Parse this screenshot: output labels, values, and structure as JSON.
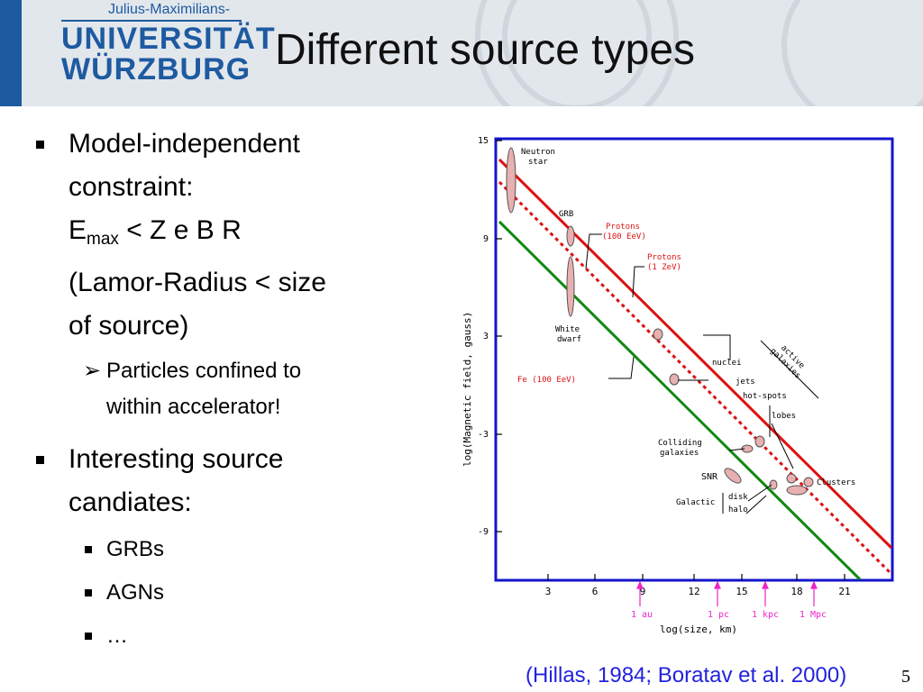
{
  "header": {
    "logo_subtitle": "Julius-Maximilians-",
    "logo_line1": "UNIVERSITÄT",
    "logo_line2": "WÜRZBURG",
    "title": "Different source types"
  },
  "bullets": {
    "b1_line1": "Model-independent",
    "b1_line2": "constraint:",
    "b1_emax_base": "E",
    "b1_emax_sub": "max",
    "b1_emax_rest": " < Z e B R",
    "b1_line4": "(Lamor-Radius < size",
    "b1_line5": "of source)",
    "b1_sub1_line1": "Particles confined to",
    "b1_sub1_line2": "within accelerator!",
    "b2_line1": "Interesting source",
    "b2_line2": "candiates:",
    "b2_sub1": "GRBs",
    "b2_sub2": "AGNs",
    "b2_sub3": "…"
  },
  "figure": {
    "ylabel": "log(Magnetic field, gauss)",
    "xlabel": "log(size, km)",
    "y_ticks": [
      "15",
      "9",
      "3",
      "-3",
      "-9"
    ],
    "x_ticks": [
      "3",
      "6",
      "9",
      "12",
      "15",
      "18",
      "21"
    ],
    "scale_markers": [
      "1 au",
      "1 pc",
      "1 kpc",
      "1 Mpc"
    ],
    "labels": {
      "neutron_star_1": "Neutron",
      "neutron_star_2": "star",
      "grb": "GRB",
      "protons_100_1": "Protons",
      "protons_100_2": "(100 EeV)",
      "protons_1z_1": "Protons",
      "protons_1z_2": "(1 ZeV)",
      "white_dwarf_1": "White",
      "white_dwarf_2": "dwarf",
      "nuclei": "nuclei",
      "active_galaxies_1": "active",
      "active_galaxies_2": "galaxies",
      "fe": "Fe (100 EeV)",
      "jets": "jets",
      "hot_spots": "hot-spots",
      "lobes": "lobes",
      "colliding_1": "Colliding",
      "colliding_2": "galaxies",
      "snr": "SNR",
      "clusters": "Clusters",
      "galactic": "Galactic",
      "disk": "disk",
      "halo": "halo"
    },
    "colors": {
      "protons_100_line": "#dd1111",
      "protons_1zev_line": "#dd1111",
      "fe_line": "#118811",
      "frame": "#1414cc",
      "source_fill": "#e8b0b0",
      "scale_marker": "#ee22cc"
    }
  },
  "footer": {
    "citation": "(Hillas, 1984; Boratav et al. 2000)",
    "page_number": "5"
  }
}
